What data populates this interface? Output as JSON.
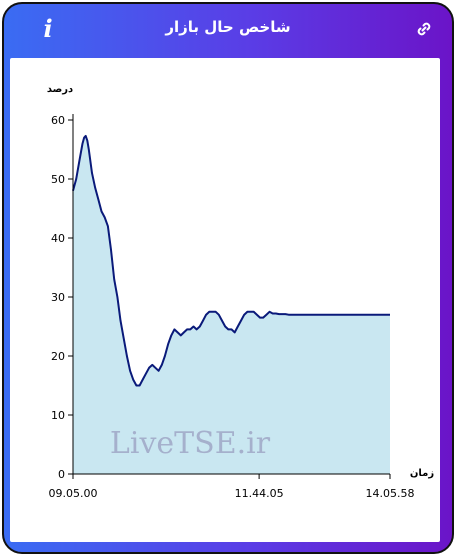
{
  "header": {
    "title": "شاخص حال بازار",
    "info_icon": "info-icon",
    "info_glyph": "i",
    "link_icon": "link-icon"
  },
  "colors": {
    "gradient_start": "#3a6cf3",
    "gradient_end": "#6b14c8",
    "line": "#0a1a7a",
    "fill": "#c9e7f1",
    "watermark": "#9a9ec0"
  },
  "watermark": "LiveTSE.ir",
  "chart_data": {
    "type": "area",
    "title": "",
    "xlabel": "زمان",
    "ylabel": "درصد",
    "ylim": [
      0,
      60
    ],
    "yticks": [
      0,
      10,
      20,
      30,
      40,
      50,
      60
    ],
    "x_tick_labels": [
      "09.05.00",
      "11.44.05",
      "14.05.58"
    ],
    "grid": false,
    "series": [
      {
        "x": [
          0,
          0.01,
          0.02,
          0.03,
          0.035,
          0.04,
          0.045,
          0.05,
          0.06,
          0.07,
          0.08,
          0.09,
          0.1,
          0.11,
          0.12,
          0.13,
          0.14,
          0.15,
          0.16,
          0.17,
          0.18,
          0.19,
          0.2,
          0.21,
          0.22,
          0.23,
          0.24,
          0.25,
          0.26,
          0.27,
          0.28,
          0.29,
          0.3,
          0.31,
          0.32,
          0.33,
          0.34,
          0.35,
          0.36,
          0.37,
          0.38,
          0.39,
          0.4,
          0.41,
          0.42,
          0.43,
          0.44,
          0.45,
          0.46,
          0.47,
          0.48,
          0.49,
          0.5,
          0.51,
          0.52,
          0.53,
          0.54,
          0.55,
          0.56,
          0.57,
          0.58,
          0.59,
          0.6,
          0.61,
          0.62,
          0.63,
          0.64,
          0.65,
          0.66,
          0.67,
          0.68,
          0.69,
          0.7,
          0.715,
          0.72,
          0.73,
          0.74,
          0.76,
          0.8,
          0.85,
          0.9,
          0.95,
          1.0
        ],
        "y": [
          48,
          50,
          53,
          56,
          57,
          57.3,
          56.5,
          55,
          51,
          48.5,
          46.5,
          44.5,
          43.5,
          42,
          38,
          33,
          30,
          26,
          23,
          20,
          17.5,
          16,
          15,
          15,
          16,
          17,
          18,
          18.5,
          18,
          17.5,
          18.5,
          20,
          22,
          23.5,
          24.5,
          24,
          23.5,
          24,
          24.5,
          24.5,
          25,
          24.5,
          25,
          26,
          27,
          27.5,
          27.5,
          27.5,
          27,
          26,
          25,
          24.5,
          24.5,
          24,
          25,
          26,
          27,
          27.5,
          27.5,
          27.5,
          27,
          26.5,
          26.5,
          27,
          27.5,
          27.2,
          27.2,
          27.1,
          27.1,
          27.1,
          27,
          27,
          27,
          27,
          27,
          27,
          27,
          27,
          27,
          27,
          27,
          27,
          27
        ]
      }
    ]
  }
}
